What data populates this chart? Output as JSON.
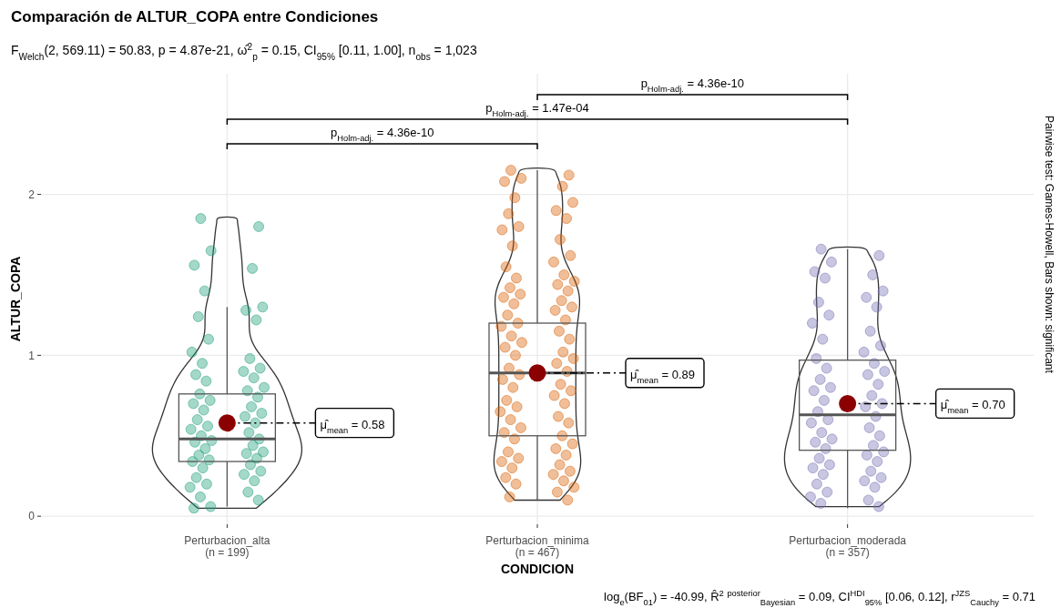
{
  "chart_data": {
    "type": "box",
    "title": "Comparación de ALTUR_COPA entre Condiciones",
    "subtitle": "F$_{Welch}$(2, 569.11) = 50.83, p = 4.87e-21, ω̂$^{2}$$_{p}$ = 0.15, CI$_{95%}$ [0.11, 1.00], n$_{obs}$ = 1,023",
    "xlabel": "CONDICION",
    "ylabel": "ALTUR_COPA",
    "categories": [
      "Perturbacion_alta\n(n = 199)",
      "Perturbacion_minima\n(n = 467)",
      "Perturbacion_moderada\n(n = 357)"
    ],
    "boxes": [
      {
        "low": 0.06,
        "q1": 0.34,
        "median": 0.48,
        "q3": 0.76,
        "high": 1.3,
        "mean": 0.58
      },
      {
        "low": 0.1,
        "q1": 0.5,
        "median": 0.89,
        "q3": 1.2,
        "high": 2.15,
        "mean": 0.89
      },
      {
        "low": 0.05,
        "q1": 0.41,
        "median": 0.63,
        "q3": 0.97,
        "high": 1.66,
        "mean": 0.7
      }
    ],
    "series": [
      {
        "type": "scatter",
        "color": "#1b9e77",
        "x": [
          "Perturbacion_alta\n(n = 199)",
          "Perturbacion_alta\n(n = 199)",
          "Perturbacion_alta\n(n = 199)",
          "Perturbacion_alta\n(n = 199)",
          "Perturbacion_alta\n(n = 199)",
          "Perturbacion_alta\n(n = 199)",
          "Perturbacion_alta\n(n = 199)",
          "Perturbacion_alta\n(n = 199)",
          "Perturbacion_alta\n(n = 199)",
          "Perturbacion_alta\n(n = 199)",
          "Perturbacion_alta\n(n = 199)",
          "Perturbacion_alta\n(n = 199)",
          "Perturbacion_alta\n(n = 199)",
          "Perturbacion_alta\n(n = 199)",
          "Perturbacion_alta\n(n = 199)",
          "Perturbacion_alta\n(n = 199)",
          "Perturbacion_alta\n(n = 199)",
          "Perturbacion_alta\n(n = 199)",
          "Perturbacion_alta\n(n = 199)",
          "Perturbacion_alta\n(n = 199)",
          "Perturbacion_alta\n(n = 199)",
          "Perturbacion_alta\n(n = 199)",
          "Perturbacion_alta\n(n = 199)",
          "Perturbacion_alta\n(n = 199)",
          "Perturbacion_alta\n(n = 199)",
          "Perturbacion_alta\n(n = 199)",
          "Perturbacion_alta\n(n = 199)",
          "Perturbacion_alta\n(n = 199)",
          "Perturbacion_alta\n(n = 199)",
          "Perturbacion_alta\n(n = 199)",
          "Perturbacion_alta\n(n = 199)",
          "Perturbacion_alta\n(n = 199)",
          "Perturbacion_alta\n(n = 199)",
          "Perturbacion_alta\n(n = 199)",
          "Perturbacion_alta\n(n = 199)",
          "Perturbacion_alta\n(n = 199)",
          "Perturbacion_alta\n(n = 199)",
          "Perturbacion_alta\n(n = 199)",
          "Perturbacion_alta\n(n = 199)",
          "Perturbacion_alta\n(n = 199)",
          "Perturbacion_alta\n(n = 199)",
          "Perturbacion_alta\n(n = 199)",
          "Perturbacion_alta\n(n = 199)",
          "Perturbacion_alta\n(n = 199)",
          "Perturbacion_alta\n(n = 199)",
          "Perturbacion_alta\n(n = 199)",
          "Perturbacion_alta\n(n = 199)",
          "Perturbacion_alta\n(n = 199)",
          "Perturbacion_alta\n(n = 199)",
          "Perturbacion_alta\n(n = 199)",
          "Perturbacion_alta\n(n = 199)",
          "Perturbacion_alta\n(n = 199)",
          "Perturbacion_alta\n(n = 199)",
          "Perturbacion_alta\n(n = 199)",
          "Perturbacion_alta\n(n = 199)",
          "Perturbacion_alta\n(n = 199)",
          "Perturbacion_alta\n(n = 199)",
          "Perturbacion_alta\n(n = 199)",
          "Perturbacion_alta\n(n = 199)"
        ],
        "values": [
          1.85,
          1.8,
          1.65,
          1.56,
          1.54,
          1.4,
          1.3,
          1.28,
          1.24,
          1.22,
          1.1,
          1.02,
          0.98,
          0.95,
          0.92,
          0.9,
          0.88,
          0.86,
          0.84,
          0.8,
          0.78,
          0.76,
          0.74,
          0.72,
          0.7,
          0.68,
          0.66,
          0.64,
          0.62,
          0.6,
          0.58,
          0.56,
          0.54,
          0.52,
          0.5,
          0.48,
          0.47,
          0.46,
          0.44,
          0.42,
          0.4,
          0.39,
          0.38,
          0.36,
          0.35,
          0.34,
          0.32,
          0.3,
          0.28,
          0.26,
          0.24,
          0.22,
          0.2,
          0.18,
          0.15,
          0.12,
          0.1,
          0.06,
          0.05
        ]
      },
      {
        "type": "scatter",
        "color": "#d95f02",
        "x": [
          "Perturbacion_minima\n(n = 467)",
          "Perturbacion_minima\n(n = 467)",
          "Perturbacion_minima\n(n = 467)",
          "Perturbacion_minima\n(n = 467)",
          "Perturbacion_minima\n(n = 467)",
          "Perturbacion_minima\n(n = 467)",
          "Perturbacion_minima\n(n = 467)",
          "Perturbacion_minima\n(n = 467)",
          "Perturbacion_minima\n(n = 467)",
          "Perturbacion_minima\n(n = 467)",
          "Perturbacion_minima\n(n = 467)",
          "Perturbacion_minima\n(n = 467)",
          "Perturbacion_minima\n(n = 467)",
          "Perturbacion_minima\n(n = 467)",
          "Perturbacion_minima\n(n = 467)",
          "Perturbacion_minima\n(n = 467)",
          "Perturbacion_minima\n(n = 467)",
          "Perturbacion_minima\n(n = 467)",
          "Perturbacion_minima\n(n = 467)",
          "Perturbacion_minima\n(n = 467)",
          "Perturbacion_minima\n(n = 467)",
          "Perturbacion_minima\n(n = 467)",
          "Perturbacion_minima\n(n = 467)",
          "Perturbacion_minima\n(n = 467)",
          "Perturbacion_minima\n(n = 467)",
          "Perturbacion_minima\n(n = 467)",
          "Perturbacion_minima\n(n = 467)",
          "Perturbacion_minima\n(n = 467)",
          "Perturbacion_minima\n(n = 467)",
          "Perturbacion_minima\n(n = 467)",
          "Perturbacion_minima\n(n = 467)",
          "Perturbacion_minima\n(n = 467)",
          "Perturbacion_minima\n(n = 467)",
          "Perturbacion_minima\n(n = 467)",
          "Perturbacion_minima\n(n = 467)",
          "Perturbacion_minima\n(n = 467)",
          "Perturbacion_minima\n(n = 467)",
          "Perturbacion_minima\n(n = 467)",
          "Perturbacion_minima\n(n = 467)",
          "Perturbacion_minima\n(n = 467)",
          "Perturbacion_minima\n(n = 467)",
          "Perturbacion_minima\n(n = 467)",
          "Perturbacion_minima\n(n = 467)",
          "Perturbacion_minima\n(n = 467)",
          "Perturbacion_minima\n(n = 467)",
          "Perturbacion_minima\n(n = 467)",
          "Perturbacion_minima\n(n = 467)",
          "Perturbacion_minima\n(n = 467)",
          "Perturbacion_minima\n(n = 467)",
          "Perturbacion_minima\n(n = 467)",
          "Perturbacion_minima\n(n = 467)",
          "Perturbacion_minima\n(n = 467)",
          "Perturbacion_minima\n(n = 467)",
          "Perturbacion_minima\n(n = 467)",
          "Perturbacion_minima\n(n = 467)",
          "Perturbacion_minima\n(n = 467)",
          "Perturbacion_minima\n(n = 467)",
          "Perturbacion_minima\n(n = 467)",
          "Perturbacion_minima\n(n = 467)",
          "Perturbacion_minima\n(n = 467)",
          "Perturbacion_minima\n(n = 467)",
          "Perturbacion_minima\n(n = 467)",
          "Perturbacion_minima\n(n = 467)",
          "Perturbacion_minima\n(n = 467)",
          "Perturbacion_minima\n(n = 467)",
          "Perturbacion_minima\n(n = 467)",
          "Perturbacion_minima\n(n = 467)",
          "Perturbacion_minima\n(n = 467)",
          "Perturbacion_minima\n(n = 467)",
          "Perturbacion_minima\n(n = 467)",
          "Perturbacion_minima\n(n = 467)",
          "Perturbacion_minima\n(n = 467)",
          "Perturbacion_minima\n(n = 467)",
          "Perturbacion_minima\n(n = 467)",
          "Perturbacion_minima\n(n = 467)",
          "Perturbacion_minima\n(n = 467)",
          "Perturbacion_minima\n(n = 467)",
          "Perturbacion_minima\n(n = 467)"
        ],
        "values": [
          2.15,
          2.12,
          2.1,
          2.08,
          2.05,
          1.98,
          1.95,
          1.9,
          1.88,
          1.85,
          1.8,
          1.78,
          1.72,
          1.68,
          1.62,
          1.58,
          1.55,
          1.5,
          1.48,
          1.46,
          1.44,
          1.42,
          1.4,
          1.38,
          1.36,
          1.34,
          1.32,
          1.3,
          1.28,
          1.25,
          1.22,
          1.2,
          1.18,
          1.15,
          1.12,
          1.1,
          1.08,
          1.05,
          1.02,
          1.0,
          0.98,
          0.95,
          0.92,
          0.9,
          0.88,
          0.85,
          0.82,
          0.8,
          0.78,
          0.75,
          0.72,
          0.7,
          0.68,
          0.65,
          0.62,
          0.6,
          0.58,
          0.55,
          0.52,
          0.5,
          0.48,
          0.45,
          0.42,
          0.4,
          0.38,
          0.36,
          0.34,
          0.32,
          0.3,
          0.28,
          0.26,
          0.24,
          0.22,
          0.2,
          0.18,
          0.15,
          0.12,
          0.1
        ]
      },
      {
        "type": "scatter",
        "color": "#7570b3",
        "x": [
          "Perturbacion_moderada\n(n = 357)",
          "Perturbacion_moderada\n(n = 357)",
          "Perturbacion_moderada\n(n = 357)",
          "Perturbacion_moderada\n(n = 357)",
          "Perturbacion_moderada\n(n = 357)",
          "Perturbacion_moderada\n(n = 357)",
          "Perturbacion_moderada\n(n = 357)",
          "Perturbacion_moderada\n(n = 357)",
          "Perturbacion_moderada\n(n = 357)",
          "Perturbacion_moderada\n(n = 357)",
          "Perturbacion_moderada\n(n = 357)",
          "Perturbacion_moderada\n(n = 357)",
          "Perturbacion_moderada\n(n = 357)",
          "Perturbacion_moderada\n(n = 357)",
          "Perturbacion_moderada\n(n = 357)",
          "Perturbacion_moderada\n(n = 357)",
          "Perturbacion_moderada\n(n = 357)",
          "Perturbacion_moderada\n(n = 357)",
          "Perturbacion_moderada\n(n = 357)",
          "Perturbacion_moderada\n(n = 357)",
          "Perturbacion_moderada\n(n = 357)",
          "Perturbacion_moderada\n(n = 357)",
          "Perturbacion_moderada\n(n = 357)",
          "Perturbacion_moderada\n(n = 357)",
          "Perturbacion_moderada\n(n = 357)",
          "Perturbacion_moderada\n(n = 357)",
          "Perturbacion_moderada\n(n = 357)",
          "Perturbacion_moderada\n(n = 357)",
          "Perturbacion_moderada\n(n = 357)",
          "Perturbacion_moderada\n(n = 357)",
          "Perturbacion_moderada\n(n = 357)",
          "Perturbacion_moderada\n(n = 357)",
          "Perturbacion_moderada\n(n = 357)",
          "Perturbacion_moderada\n(n = 357)",
          "Perturbacion_moderada\n(n = 357)",
          "Perturbacion_moderada\n(n = 357)",
          "Perturbacion_moderada\n(n = 357)",
          "Perturbacion_moderada\n(n = 357)",
          "Perturbacion_moderada\n(n = 357)",
          "Perturbacion_moderada\n(n = 357)",
          "Perturbacion_moderada\n(n = 357)",
          "Perturbacion_moderada\n(n = 357)",
          "Perturbacion_moderada\n(n = 357)",
          "Perturbacion_moderada\n(n = 357)",
          "Perturbacion_moderada\n(n = 357)",
          "Perturbacion_moderada\n(n = 357)",
          "Perturbacion_moderada\n(n = 357)",
          "Perturbacion_moderada\n(n = 357)",
          "Perturbacion_moderada\n(n = 357)",
          "Perturbacion_moderada\n(n = 357)",
          "Perturbacion_moderada\n(n = 357)",
          "Perturbacion_moderada\n(n = 357)",
          "Perturbacion_moderada\n(n = 357)",
          "Perturbacion_moderada\n(n = 357)",
          "Perturbacion_moderada\n(n = 357)",
          "Perturbacion_moderada\n(n = 357)",
          "Perturbacion_moderada\n(n = 357)"
        ],
        "values": [
          1.66,
          1.62,
          1.58,
          1.52,
          1.5,
          1.48,
          1.4,
          1.36,
          1.33,
          1.3,
          1.25,
          1.2,
          1.15,
          1.1,
          1.06,
          1.02,
          0.98,
          0.95,
          0.92,
          0.9,
          0.88,
          0.85,
          0.82,
          0.8,
          0.78,
          0.75,
          0.72,
          0.7,
          0.68,
          0.65,
          0.62,
          0.6,
          0.58,
          0.55,
          0.52,
          0.5,
          0.48,
          0.46,
          0.44,
          0.42,
          0.4,
          0.38,
          0.36,
          0.34,
          0.32,
          0.3,
          0.28,
          0.26,
          0.24,
          0.22,
          0.2,
          0.18,
          0.15,
          0.12,
          0.1,
          0.08,
          0.06
        ]
      }
    ],
    "annotations": [
      "p$_{Holm-adj.}$ = 4.36e-10",
      "p$_{Holm-adj.}$ = 1.47e-04",
      "p$_{Holm-adj.}$ = 4.36e-10",
      "log$_{e}$(BF$_{01}$) = -40.99, R̂$^{2}$ $^{posterior}$$_{Bayesian}$ = 0.09, CI$^{HDI}$$_{95%}$ [0.06, 0.12], r$^{JZS}$$_{Cauchy}$ = 0.71",
      "Pairwise test: Games-Howell, Bars shown: significant",
      "μ̂$_{mean}$ = 0.58",
      {
        "text": "μ̂$_{mean}$ = 0.89",
        "x": "Perturbacion_minima\n(n = 467)",
        "y": 0.89
      },
      "μ̂$_{mean}$ = 0.70"
    ],
    "ylim": [
      -0.05,
      2.75
    ],
    "yticks": [
      0,
      1,
      2
    ],
    "grid": true,
    "legend": false
  }
}
